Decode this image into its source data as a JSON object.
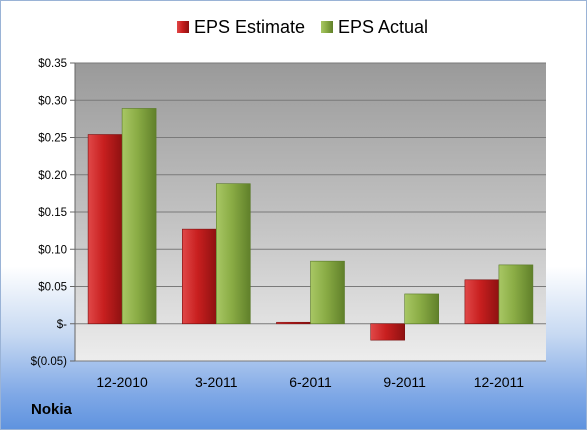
{
  "chart_data": {
    "type": "bar",
    "categories": [
      "12-2010",
      "3-2011",
      "6-2011",
      "9-2011",
      "12-2011"
    ],
    "series": [
      {
        "name": "EPS Estimate",
        "values": [
          0.254,
          0.127,
          0.002,
          -0.022,
          0.059
        ],
        "color": "#cc2222"
      },
      {
        "name": "EPS Actual",
        "values": [
          0.289,
          0.188,
          0.084,
          0.04,
          0.079
        ],
        "color": "#8fb04a"
      }
    ],
    "ylim": [
      -0.05,
      0.35
    ],
    "yticks": [
      {
        "value": 0.35,
        "label": "$0.35"
      },
      {
        "value": 0.3,
        "label": "$0.30"
      },
      {
        "value": 0.25,
        "label": "$0.25"
      },
      {
        "value": 0.2,
        "label": "$0.20"
      },
      {
        "value": 0.15,
        "label": "$0.15"
      },
      {
        "value": 0.1,
        "label": "$0.10"
      },
      {
        "value": 0.05,
        "label": "$0.05"
      },
      {
        "value": 0,
        "label": "$-"
      },
      {
        "value": -0.05,
        "label": "$(0.05)"
      }
    ],
    "grid": true,
    "legend": "top"
  },
  "footer": {
    "company": "Nokia"
  }
}
